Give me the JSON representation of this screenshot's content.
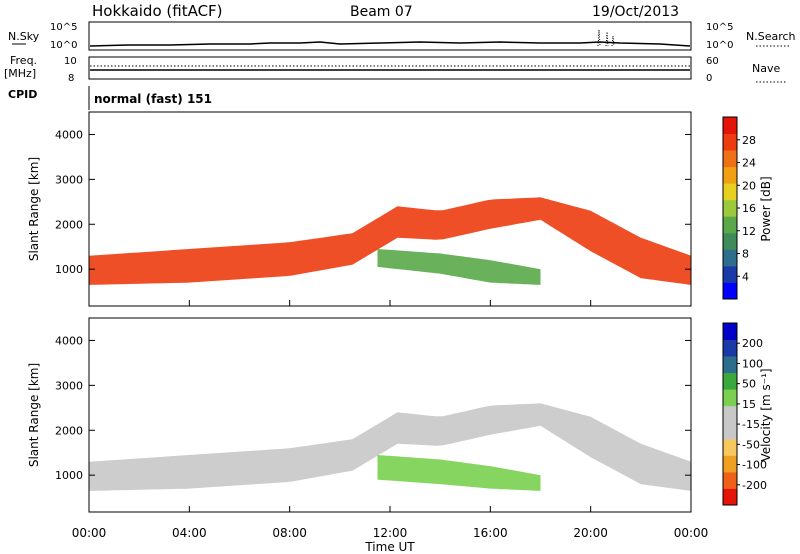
{
  "header": {
    "station": "Hokkaido (fitACF)",
    "beam": "Beam 07",
    "date": "19/Oct/2013"
  },
  "sky_panel": {
    "left_label": "N.Sky",
    "right_label": "N.Search",
    "ticks": [
      "10^5",
      "10^0"
    ]
  },
  "freq_panel": {
    "left_label_1": "Freq.",
    "left_label_2": "[MHz]",
    "right_label": "Nave",
    "left_ticks": [
      "10",
      "8"
    ],
    "right_ticks": [
      "60",
      "0"
    ]
  },
  "cpid": {
    "label": "CPID",
    "value": "normal (fast) 151"
  },
  "xaxis": {
    "label": "Time UT",
    "ticks": [
      "00:00",
      "04:00",
      "08:00",
      "12:00",
      "16:00",
      "20:00",
      "00:00"
    ]
  },
  "colors": {
    "power_scale": [
      "#0000ff",
      "#1a3aa8",
      "#2c6e8c",
      "#3e8c5a",
      "#5aa84a",
      "#9cc83c",
      "#e8d020",
      "#f0a010",
      "#f07018",
      "#ec3c10",
      "#e41408"
    ],
    "velocity_scale": [
      "#e41408",
      "#f06018",
      "#f0a020",
      "#f8c860",
      "#c8c8c8",
      "#c8c8c8",
      "#7ad050",
      "#3aa83a",
      "#2c6e8c",
      "#1a3aa8",
      "#0000c8"
    ],
    "ground_scatter": "#c0c0c0"
  },
  "chart_data": [
    {
      "type": "heatmap",
      "title": "Power",
      "xlabel": "Time UT",
      "ylabel": "Slant Range [km]",
      "xlim": [
        0,
        24
      ],
      "ylim": [
        180,
        4500
      ],
      "yticks": [
        "1000",
        "2000",
        "3000",
        "4000"
      ],
      "colorbar_label": "Power [dB]",
      "colorbar_ticks": [
        "28",
        "24",
        "20",
        "16",
        "12",
        "8",
        "4"
      ],
      "colorbar_range": [
        0,
        30
      ],
      "bands": [
        {
          "x": [
            0,
            4,
            8,
            10.5,
            12.3,
            14,
            16,
            18
          ],
          "lo": [
            650,
            700,
            850,
            1100,
            1700,
            1650,
            1900,
            2100
          ],
          "hi": [
            1300,
            1450,
            1600,
            1800,
            2400,
            2300,
            2550,
            2600
          ],
          "value": 27
        },
        {
          "x": [
            18,
            20,
            22,
            24
          ],
          "lo": [
            2100,
            1400,
            800,
            650
          ],
          "hi": [
            2600,
            2300,
            1700,
            1300
          ],
          "value": 26
        },
        {
          "x": [
            11.5,
            14,
            16,
            18
          ],
          "lo": [
            1050,
            900,
            700,
            650
          ],
          "hi": [
            1450,
            1350,
            1200,
            1000
          ],
          "value": 13
        }
      ]
    },
    {
      "type": "heatmap",
      "title": "Velocity",
      "xlabel": "Time UT",
      "ylabel": "Slant Range [km]",
      "xlim": [
        0,
        24
      ],
      "ylim": [
        180,
        4500
      ],
      "yticks": [
        "1000",
        "2000",
        "3000",
        "4000"
      ],
      "colorbar_label": "Velocity [m s⁻¹]",
      "colorbar_ticks": [
        "200",
        "100",
        "50",
        "15",
        "-15",
        "-50",
        "-100",
        "-200"
      ],
      "colorbar_range": [
        -250,
        250
      ],
      "bands": [
        {
          "x": [
            0,
            4,
            8,
            10.5,
            12.3,
            14,
            16,
            18
          ],
          "lo": [
            650,
            700,
            850,
            1100,
            1700,
            1650,
            1900,
            2100
          ],
          "hi": [
            1300,
            1450,
            1600,
            1800,
            2400,
            2300,
            2550,
            2600
          ],
          "value": 0
        },
        {
          "x": [
            18,
            20,
            22,
            24
          ],
          "lo": [
            2100,
            1400,
            800,
            650
          ],
          "hi": [
            2600,
            2300,
            1700,
            1300
          ],
          "value": 0
        },
        {
          "x": [
            11.5,
            14,
            16,
            18
          ],
          "lo": [
            900,
            800,
            700,
            650
          ],
          "hi": [
            1450,
            1350,
            1200,
            1000
          ],
          "value": 35
        }
      ]
    }
  ]
}
